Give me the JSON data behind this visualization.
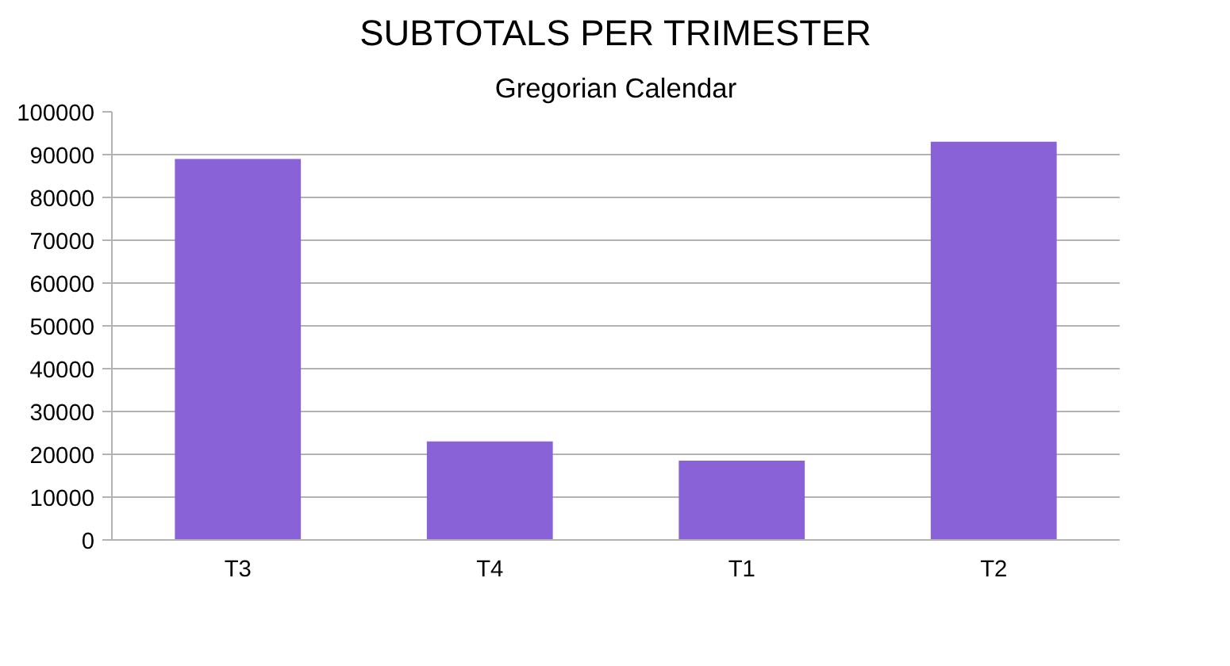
{
  "chart_data": {
    "type": "bar",
    "title": "SUBTOTALS PER TRIMESTER",
    "subtitle": "Gregorian Calendar",
    "categories": [
      "T3",
      "T4",
      "T1",
      "T2"
    ],
    "values": [
      89000,
      23000,
      18500,
      93000
    ],
    "color": "#8a62d8",
    "ylim": [
      0,
      100000
    ],
    "yticks": [
      0,
      10000,
      20000,
      30000,
      40000,
      50000,
      60000,
      70000,
      80000,
      90000,
      100000
    ],
    "grid": "y"
  }
}
